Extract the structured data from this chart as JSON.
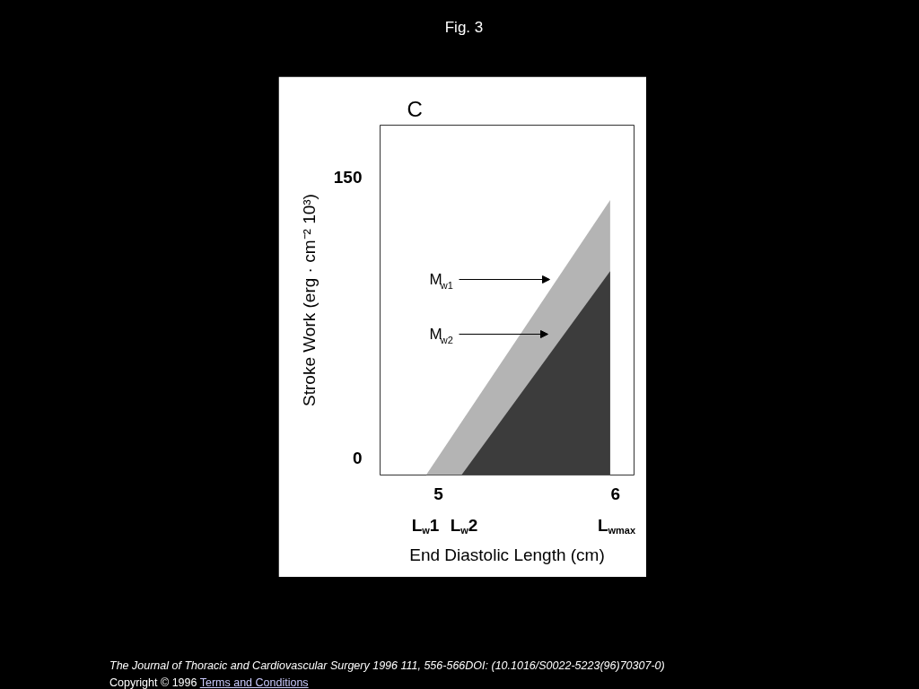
{
  "chart_data": {
    "type": "area",
    "title": "Fig. 3",
    "subtitle": "C",
    "xlabel": "End Diastolic Length (cm)",
    "ylabel": "Stroke Work (erg · cm⁻² 10³)",
    "xlim": [
      4.67,
      6.105
    ],
    "ylim": [
      -9,
      178
    ],
    "xticks": [
      5,
      6
    ],
    "yticks": [
      0,
      150
    ],
    "grid": false,
    "series": [
      {
        "color": "#b4b4b4",
        "x": [
          4.93,
          5.97
        ],
        "values": [
          -9,
          138
        ]
      },
      {
        "color": "#3c3c3c",
        "x": [
          5.13,
          5.97
        ],
        "values": [
          -9,
          100
        ]
      }
    ],
    "annotations": [
      "M$_{w1}$",
      "M$_{w2}$",
      "L$_{w}$1",
      "L$_{w}$2",
      "L$_{wmax}$",
      "The Journal of Thoracic and Cardiovascular Surgery 1996 111, 556-566DOI: (10.1016/S0022-5223(96)70307-0)",
      "Copyright © 1996",
      "Terms and Conditions"
    ]
  }
}
